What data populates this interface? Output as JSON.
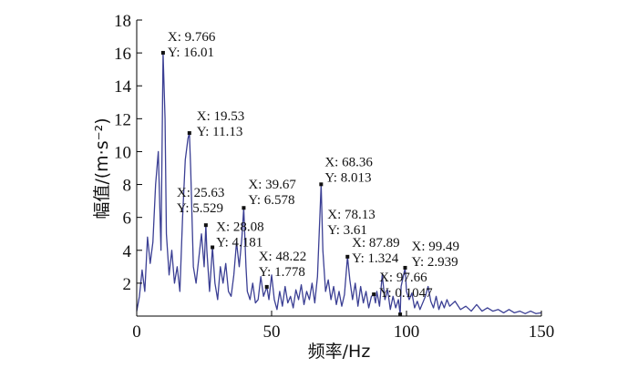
{
  "chart_data": {
    "type": "line",
    "x_label": "频率/Hz",
    "y_label": "幅值/(m·s⁻²)",
    "xlim": [
      0,
      150
    ],
    "ylim": [
      0,
      18
    ],
    "xticks": [
      0,
      50,
      100,
      150
    ],
    "yticks": [
      2,
      4,
      6,
      8,
      10,
      12,
      14,
      16,
      18
    ],
    "x": [
      0,
      1,
      2,
      3,
      4,
      5,
      6,
      7,
      8,
      9,
      9.766,
      10.5,
      11,
      12,
      13,
      14,
      15,
      16,
      17,
      18,
      19,
      19.53,
      20,
      21,
      22,
      23,
      24,
      25,
      25.63,
      26,
      27,
      28.08,
      29,
      30,
      31,
      32,
      33,
      34,
      35,
      36,
      37,
      38,
      39,
      39.67,
      40.5,
      41,
      42,
      43,
      44,
      45,
      46,
      47,
      48.22,
      49,
      50,
      51,
      52,
      53,
      54,
      55,
      56,
      57,
      58,
      59,
      60,
      61,
      62,
      63,
      64,
      65,
      66,
      67,
      68.36,
      69,
      70,
      71,
      72,
      73,
      74,
      75,
      76,
      77,
      78.13,
      79,
      80,
      81,
      82,
      83,
      84,
      85,
      86,
      87,
      87.89,
      88.5,
      89,
      90,
      91,
      92,
      93,
      94,
      95,
      96,
      97,
      97.66,
      98,
      99.49,
      100,
      101,
      102,
      103,
      104,
      105,
      106,
      107,
      108,
      109,
      110,
      111,
      112,
      113,
      114,
      115,
      116,
      118,
      120,
      122,
      124,
      126,
      128,
      130,
      132,
      134,
      136,
      138,
      140,
      142,
      144,
      146,
      148,
      150
    ],
    "series": [
      {
        "color": "#3b3f94",
        "values": [
          0.3,
          1.2,
          2.8,
          1.5,
          4.8,
          3.2,
          4.5,
          8.0,
          10.0,
          4.0,
          16.01,
          12,
          5.0,
          2.5,
          4.0,
          2.0,
          3.0,
          1.5,
          6.0,
          9.5,
          10.8,
          11.13,
          9.0,
          3.0,
          2.0,
          3.5,
          5.0,
          3.0,
          5.529,
          4.0,
          1.5,
          4.181,
          2.0,
          1.0,
          3.0,
          2.0,
          3.2,
          1.5,
          1.2,
          2.5,
          4.5,
          3.0,
          4.8,
          6.578,
          3.0,
          1.5,
          1.0,
          2.0,
          0.8,
          1.0,
          2.4,
          1.2,
          1.778,
          1.0,
          2.5,
          1.0,
          0.4,
          1.5,
          0.6,
          1.8,
          0.8,
          1.2,
          0.5,
          1.6,
          1.0,
          1.9,
          0.7,
          1.5,
          1.0,
          2.0,
          0.8,
          2.4,
          8.013,
          4.0,
          1.5,
          2.2,
          1.0,
          1.8,
          0.7,
          1.5,
          0.6,
          1.3,
          3.61,
          2.2,
          1.0,
          2.0,
          0.6,
          1.8,
          0.8,
          1.5,
          0.5,
          1.2,
          1.324,
          0.8,
          1.5,
          0.6,
          2.5,
          1.0,
          1.6,
          0.4,
          1.2,
          0.5,
          1.0,
          0.1047,
          1.8,
          2.939,
          1.5,
          1.0,
          1.4,
          0.5,
          0.9,
          0.4,
          0.8,
          1.2,
          1.8,
          0.9,
          0.5,
          1.2,
          0.4,
          0.9,
          0.5,
          1.0,
          0.6,
          0.9,
          0.4,
          0.6,
          0.3,
          0.7,
          0.3,
          0.5,
          0.3,
          0.4,
          0.2,
          0.4,
          0.2,
          0.3,
          0.15,
          0.3,
          0.15,
          0.2
        ]
      }
    ],
    "annotations": [
      {
        "x": 9.766,
        "y": 16.01,
        "text": [
          "X: 9.766",
          "Y: 16.01"
        ]
      },
      {
        "x": 19.53,
        "y": 11.13,
        "text": [
          "X: 19.53",
          "Y: 11.13"
        ]
      },
      {
        "x": 25.63,
        "y": 5.529,
        "text": [
          "X: 25.63",
          "Y: 5.529"
        ]
      },
      {
        "x": 28.08,
        "y": 4.181,
        "text": [
          "X: 28.08",
          "Y: 4.181"
        ]
      },
      {
        "x": 39.67,
        "y": 6.578,
        "text": [
          "X: 39.67",
          "Y: 6.578"
        ]
      },
      {
        "x": 48.22,
        "y": 1.778,
        "text": [
          "X: 48.22",
          "Y: 1.778"
        ]
      },
      {
        "x": 68.36,
        "y": 8.013,
        "text": [
          "X: 68.36",
          "Y: 8.013"
        ]
      },
      {
        "x": 78.13,
        "y": 3.61,
        "text": [
          "X: 78.13",
          "Y: 3.61"
        ]
      },
      {
        "x": 87.89,
        "y": 1.324,
        "text": [
          "X: 87.89",
          "Y: 1.324"
        ]
      },
      {
        "x": 97.66,
        "y": 0.1047,
        "text": [
          "X: 97.66",
          "Y: 0.1047"
        ]
      },
      {
        "x": 99.49,
        "y": 2.939,
        "text": [
          "X: 99.49",
          "Y: 2.939"
        ]
      }
    ]
  }
}
